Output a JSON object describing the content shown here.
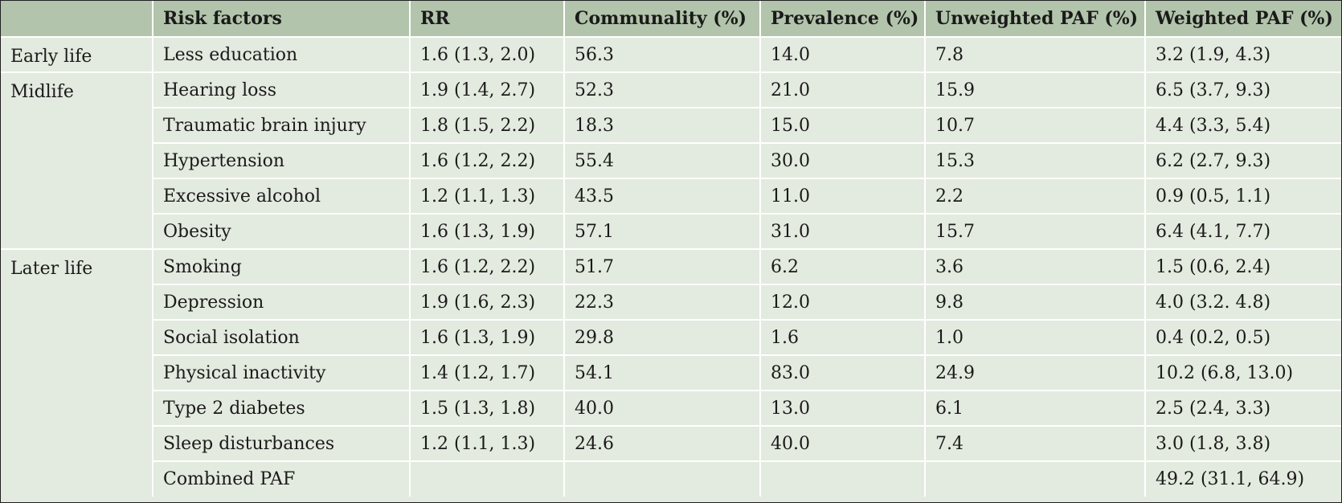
{
  "table": {
    "headers": [
      "",
      "Risk factors",
      "RR",
      "Communality (%)",
      "Prevalence (%)",
      "Unweighted PAF (%)",
      "Weighted PAF (%)"
    ],
    "rows": [
      {
        "group": "Early life",
        "factor": "Less education",
        "rr": "1.6 (1.3, 2.0)",
        "communality": "56.3",
        "prevalence": "14.0",
        "unweighted_paf": "7.8",
        "weighted_paf": "3.2 (1.9, 4.3)"
      },
      {
        "group": "Midlife",
        "factor": "Hearing loss",
        "rr": "1.9 (1.4, 2.7)",
        "communality": "52.3",
        "prevalence": "21.0",
        "unweighted_paf": "15.9",
        "weighted_paf": "6.5 (3.7, 9.3)"
      },
      {
        "group": "",
        "factor": "Traumatic brain injury",
        "rr": "1.8 (1.5, 2.2)",
        "communality": "18.3",
        "prevalence": "15.0",
        "unweighted_paf": "10.7",
        "weighted_paf": "4.4 (3.3, 5.4)"
      },
      {
        "group": "",
        "factor": "Hypertension",
        "rr": "1.6 (1.2, 2.2)",
        "communality": "55.4",
        "prevalence": "30.0",
        "unweighted_paf": "15.3",
        "weighted_paf": "6.2 (2.7, 9.3)"
      },
      {
        "group": "",
        "factor": "Excessive alcohol",
        "rr": "1.2 (1.1, 1.3)",
        "communality": "43.5",
        "prevalence": "11.0",
        "unweighted_paf": "2.2",
        "weighted_paf": "0.9 (0.5, 1.1)"
      },
      {
        "group": "",
        "factor": "Obesity",
        "rr": "1.6 (1.3, 1.9)",
        "communality": "57.1",
        "prevalence": "31.0",
        "unweighted_paf": "15.7",
        "weighted_paf": "6.4 (4.1, 7.7)"
      },
      {
        "group": "Later life",
        "factor": "Smoking",
        "rr": "1.6 (1.2, 2.2)",
        "communality": "51.7",
        "prevalence": "6.2",
        "unweighted_paf": "3.6",
        "weighted_paf": "1.5 (0.6, 2.4)"
      },
      {
        "group": "",
        "factor": "Depression",
        "rr": "1.9 (1.6, 2.3)",
        "communality": "22.3",
        "prevalence": "12.0",
        "unweighted_paf": "9.8",
        "weighted_paf": "4.0 (3.2. 4.8)"
      },
      {
        "group": "",
        "factor": "Social isolation",
        "rr": "1.6 (1.3, 1.9)",
        "communality": "29.8",
        "prevalence": "1.6",
        "unweighted_paf": "1.0",
        "weighted_paf": "0.4 (0.2, 0.5)"
      },
      {
        "group": "",
        "factor": "Physical inactivity",
        "rr": "1.4 (1.2, 1.7)",
        "communality": "54.1",
        "prevalence": "83.0",
        "unweighted_paf": "24.9",
        "weighted_paf": "10.2 (6.8, 13.0)"
      },
      {
        "group": "",
        "factor": "Type 2 diabetes",
        "rr": "1.5 (1.3, 1.8)",
        "communality": "40.0",
        "prevalence": "13.0",
        "unweighted_paf": "6.1",
        "weighted_paf": "2.5 (2.4, 3.3)"
      },
      {
        "group": "",
        "factor": "Sleep disturbances",
        "rr": "1.2 (1.1, 1.3)",
        "communality": "24.6",
        "prevalence": "40.0",
        "unweighted_paf": "7.4",
        "weighted_paf": "3.0 (1.8, 3.8)"
      },
      {
        "group": "",
        "factor": "Combined PAF",
        "rr": "",
        "communality": "",
        "prevalence": "",
        "unweighted_paf": "",
        "weighted_paf": "49.2 (31.1, 64.9)"
      }
    ]
  },
  "colors": {
    "header_background": "#b2c4ab",
    "body_background": "#e3eadf",
    "grid_lines": "#ffffff",
    "outer_border": "#1f1f1f"
  }
}
